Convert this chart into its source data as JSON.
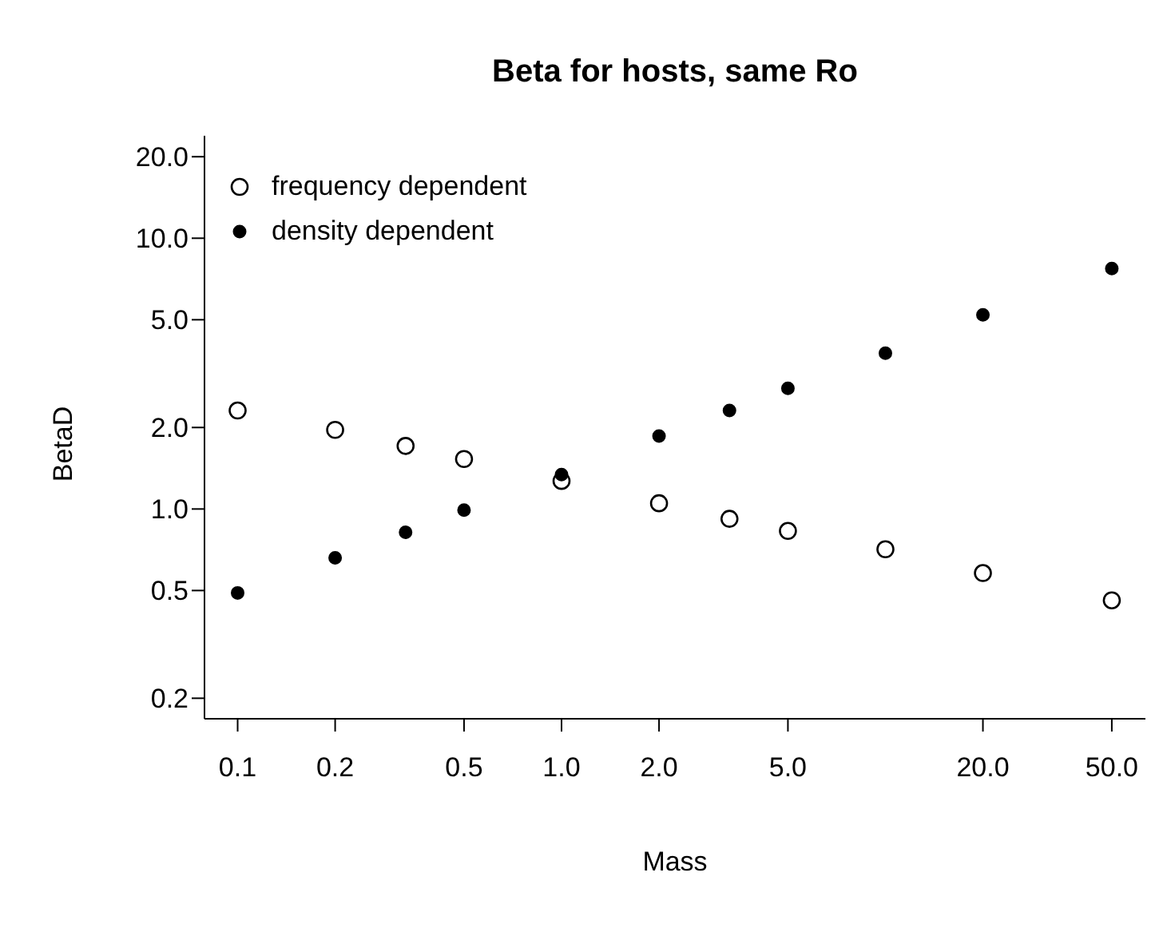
{
  "chart_data": {
    "type": "scatter",
    "title": "Beta for hosts, same Ro",
    "xlabel": "Mass",
    "ylabel": "BetaD",
    "log": "xy",
    "grid": false,
    "legend": "top left",
    "marker": "circle",
    "xlim": [
      0.079,
      63.5
    ],
    "ylim": [
      0.168,
      23.9
    ],
    "xticks": [
      {
        "value": 0.1,
        "label": "0.1"
      },
      {
        "value": 0.2,
        "label": "0.2"
      },
      {
        "value": 0.5,
        "label": "0.5"
      },
      {
        "value": 1,
        "label": "1.0"
      },
      {
        "value": 2,
        "label": "2.0"
      },
      {
        "value": 5,
        "label": "5.0"
      },
      {
        "value": 20,
        "label": "20.0"
      },
      {
        "value": 50,
        "label": "50.0"
      }
    ],
    "yticks": [
      {
        "value": 0.2,
        "label": "0.2"
      },
      {
        "value": 0.5,
        "label": "0.5"
      },
      {
        "value": 1,
        "label": "1.0"
      },
      {
        "value": 2,
        "label": "2.0"
      },
      {
        "value": 5,
        "label": "5.0"
      },
      {
        "value": 10,
        "label": "10.0"
      },
      {
        "value": 20,
        "label": "20.0"
      }
    ],
    "x": [
      0.1,
      0.2,
      0.33,
      0.5,
      1,
      2,
      3.3,
      5,
      10,
      20,
      50
    ],
    "series": [
      {
        "name": "frequency dependent",
        "color": "#000000",
        "values": [
          2.31,
          1.96,
          1.71,
          1.53,
          1.27,
          1.05,
          0.92,
          0.83,
          0.71,
          0.58,
          0.46
        ]
      },
      {
        "name": "density dependent",
        "color": "#000000",
        "values": [
          0.49,
          0.66,
          0.82,
          0.99,
          1.34,
          1.86,
          2.31,
          2.79,
          3.76,
          5.21,
          7.73
        ]
      }
    ]
  }
}
